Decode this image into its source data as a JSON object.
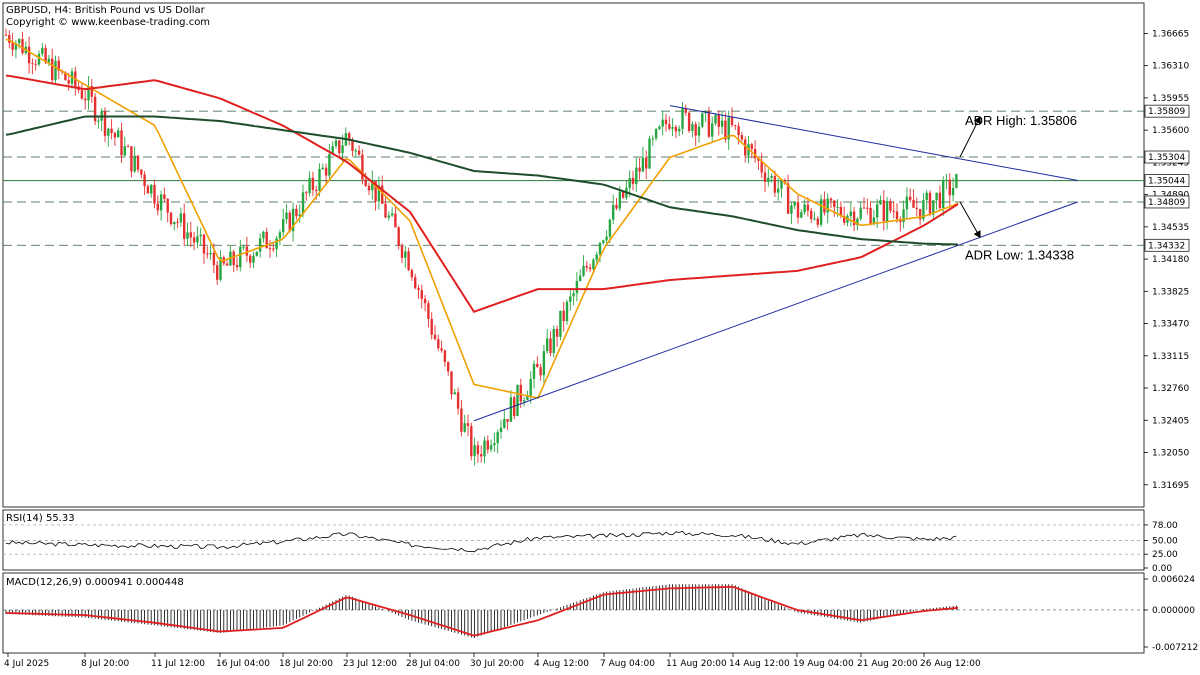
{
  "header": {
    "title": "GBPUSD, H4:  British Pound vs US Dollar",
    "copyright": "Copyright © www.keenbase-trading.com"
  },
  "chart_data": {
    "type": "candlestick",
    "symbol": "GBPUSD",
    "timeframe": "H4",
    "price_axis": {
      "ticks": [
        "1.36665",
        "1.36310",
        "1.35955",
        "1.35600",
        "1.35245",
        "1.34890",
        "1.34535",
        "1.34180",
        "1.33825",
        "1.33470",
        "1.33115",
        "1.32760",
        "1.32405",
        "1.32050",
        "1.31695"
      ],
      "range": [
        1.3145,
        1.37
      ]
    },
    "x_axis_labels": [
      "4 Jul 2025",
      "8 Jul 20:00",
      "11 Jul 12:00",
      "16 Jul 04:00",
      "18 Jul 20:00",
      "23 Jul 12:00",
      "28 Jul 04:00",
      "30 Jul 20:00",
      "4 Aug 12:00",
      "7 Aug 04:00",
      "11 Aug 20:00",
      "14 Aug 12:00",
      "19 Aug 04:00",
      "21 Aug 20:00",
      "26 Aug 12:00"
    ],
    "price_key_points": [
      [
        "4 Jul 2025",
        1.3665
      ],
      [
        "8 Jul 20:00",
        1.36
      ],
      [
        "11 Jul 12:00",
        1.349
      ],
      [
        "16 Jul 04:00",
        1.3405
      ],
      [
        "18 Jul 20:00",
        1.345
      ],
      [
        "23 Jul 12:00",
        1.3555
      ],
      [
        "28 Jul 04:00",
        1.3415
      ],
      [
        "30 Jul 20:00",
        1.32
      ],
      [
        "4 Aug 12:00",
        1.3295
      ],
      [
        "7 Aug 04:00",
        1.345
      ],
      [
        "11 Aug 20:00",
        1.3575
      ],
      [
        "14 Aug 12:00",
        1.356
      ],
      [
        "19 Aug 04:00",
        1.347
      ],
      [
        "21 Aug 20:00",
        1.347
      ],
      [
        "26 Aug 12:00",
        1.3475
      ],
      [
        "end",
        1.3504
      ]
    ],
    "moving_averages": [
      {
        "color": "#f0a000",
        "points": [
          [
            "4 Jul 2025",
            1.366
          ],
          [
            "8 Jul 20:00",
            1.361
          ],
          [
            "11 Jul 12:00",
            1.3565
          ],
          [
            "16 Jul 04:00",
            1.3415
          ],
          [
            "18 Jul 20:00",
            1.344
          ],
          [
            "23 Jul 12:00",
            1.353
          ],
          [
            "28 Jul 04:00",
            1.346
          ],
          [
            "30 Jul 20:00",
            1.328
          ],
          [
            "4 Aug 12:00",
            1.3265
          ],
          [
            "7 Aug 04:00",
            1.343
          ],
          [
            "11 Aug 20:00",
            1.353
          ],
          [
            "14 Aug 12:00",
            1.3555
          ],
          [
            "19 Aug 04:00",
            1.349
          ],
          [
            "21 Aug 20:00",
            1.3455
          ],
          [
            "26 Aug 12:00",
            1.3465
          ],
          [
            "end",
            1.348
          ]
        ]
      },
      {
        "color": "#e02020",
        "points": [
          [
            "4 Jul 2025",
            1.362
          ],
          [
            "8 Jul 20:00",
            1.3605
          ],
          [
            "11 Jul 12:00",
            1.3615
          ],
          [
            "16 Jul 04:00",
            1.3595
          ],
          [
            "18 Jul 20:00",
            1.3565
          ],
          [
            "23 Jul 12:00",
            1.3525
          ],
          [
            "28 Jul 04:00",
            1.347
          ],
          [
            "30 Jul 20:00",
            1.336
          ],
          [
            "4 Aug 12:00",
            1.3385
          ],
          [
            "7 Aug 04:00",
            1.3385
          ],
          [
            "11 Aug 20:00",
            1.3395
          ],
          [
            "14 Aug 12:00",
            1.34
          ],
          [
            "19 Aug 04:00",
            1.3405
          ],
          [
            "21 Aug 20:00",
            1.342
          ],
          [
            "26 Aug 12:00",
            1.3455
          ],
          [
            "end",
            1.348
          ]
        ]
      },
      {
        "color": "#1e4d2b",
        "points": [
          [
            "4 Jul 2025",
            1.3555
          ],
          [
            "8 Jul 20:00",
            1.3575
          ],
          [
            "11 Jul 12:00",
            1.3575
          ],
          [
            "16 Jul 04:00",
            1.357
          ],
          [
            "18 Jul 20:00",
            1.356
          ],
          [
            "23 Jul 12:00",
            1.355
          ],
          [
            "28 Jul 04:00",
            1.3535
          ],
          [
            "30 Jul 20:00",
            1.3515
          ],
          [
            "4 Aug 12:00",
            1.351
          ],
          [
            "7 Aug 04:00",
            1.35
          ],
          [
            "11 Aug 20:00",
            1.3475
          ],
          [
            "14 Aug 12:00",
            1.3465
          ],
          [
            "19 Aug 04:00",
            1.345
          ],
          [
            "21 Aug 20:00",
            1.344
          ],
          [
            "26 Aug 12:00",
            1.3435
          ],
          [
            "end",
            1.3434
          ]
        ]
      }
    ],
    "horizontal_levels": [
      {
        "label": "1.35809",
        "price": 1.35809,
        "style": "dashed"
      },
      {
        "label": "1.35304",
        "price": 1.35304,
        "style": "dashed"
      },
      {
        "label": "1.35044",
        "price": 1.35044,
        "style": "solid",
        "current": true
      },
      {
        "label": "1.34809",
        "price": 1.34809,
        "style": "dashed"
      },
      {
        "label": "1.34332",
        "price": 1.34332,
        "style": "dashed"
      }
    ],
    "trendlines": [
      {
        "from": [
          "11 Aug 20:00",
          1.3587
        ],
        "to": [
          "beyond",
          1.35045
        ]
      },
      {
        "from": [
          "30 Jul 20:00",
          1.324
        ],
        "to": [
          "beyond",
          1.3481
        ]
      }
    ],
    "annotations": [
      {
        "text": "ADR High: 1.35806",
        "direction": "up"
      },
      {
        "text": "ADR Low: 1.34338",
        "direction": "down"
      }
    ],
    "rsi": {
      "label": "RSI(14) 55.33",
      "value": 55.33,
      "ticks": [
        "78.00",
        "50.00",
        "25.00",
        "0.00"
      ],
      "levels": [
        70,
        50,
        30
      ],
      "key_values": [
        [
          "4 Jul 2025",
          46
        ],
        [
          "8 Jul 20:00",
          42
        ],
        [
          "11 Jul 12:00",
          40
        ],
        [
          "16 Jul 04:00",
          38
        ],
        [
          "18 Jul 20:00",
          48
        ],
        [
          "23 Jul 12:00",
          62
        ],
        [
          "28 Jul 04:00",
          42
        ],
        [
          "30 Jul 20:00",
          33
        ],
        [
          "4 Aug 12:00",
          55
        ],
        [
          "7 Aug 04:00",
          58
        ],
        [
          "11 Aug 20:00",
          64
        ],
        [
          "14 Aug 12:00",
          60
        ],
        [
          "19 Aug 04:00",
          44
        ],
        [
          "21 Aug 20:00",
          60
        ],
        [
          "26 Aug 12:00",
          52
        ],
        [
          "end",
          55.33
        ]
      ]
    },
    "macd": {
      "label": "MACD(12,26,9) 0.000941 0.000448",
      "main": 0.000941,
      "signal": 0.000448,
      "ticks": [
        "0.006024",
        "0.000000",
        "-0.007212"
      ],
      "key_values": [
        [
          "4 Jul 2025",
          -0.0008,
          -0.0006
        ],
        [
          "8 Jul 20:00",
          -0.0015,
          -0.001
        ],
        [
          "11 Jul 12:00",
          -0.003,
          -0.0025
        ],
        [
          "16 Jul 04:00",
          -0.0045,
          -0.0042
        ],
        [
          "18 Jul 20:00",
          -0.003,
          -0.0035
        ],
        [
          "23 Jul 12:00",
          0.003,
          0.0025
        ],
        [
          "28 Jul 04:00",
          -0.002,
          -0.001
        ],
        [
          "30 Jul 20:00",
          -0.0055,
          -0.005
        ],
        [
          "4 Aug 12:00",
          -0.001,
          -0.002
        ],
        [
          "7 Aug 04:00",
          0.0035,
          0.003
        ],
        [
          "11 Aug 20:00",
          0.005,
          0.0042
        ],
        [
          "14 Aug 12:00",
          0.005,
          0.0045
        ],
        [
          "19 Aug 04:00",
          -0.0005,
          0.0
        ],
        [
          "21 Aug 20:00",
          -0.0025,
          -0.002
        ],
        [
          "26 Aug 12:00",
          0.0002,
          -0.0002
        ],
        [
          "end",
          0.000941,
          0.000448
        ]
      ]
    },
    "colors": {
      "bull": "#26a640",
      "bear": "#e53030",
      "ma_fast": "#f0a000",
      "ma_mid": "#e02020",
      "ma_slow": "#1e4d2b",
      "trendline": "#1f2b9f"
    }
  }
}
